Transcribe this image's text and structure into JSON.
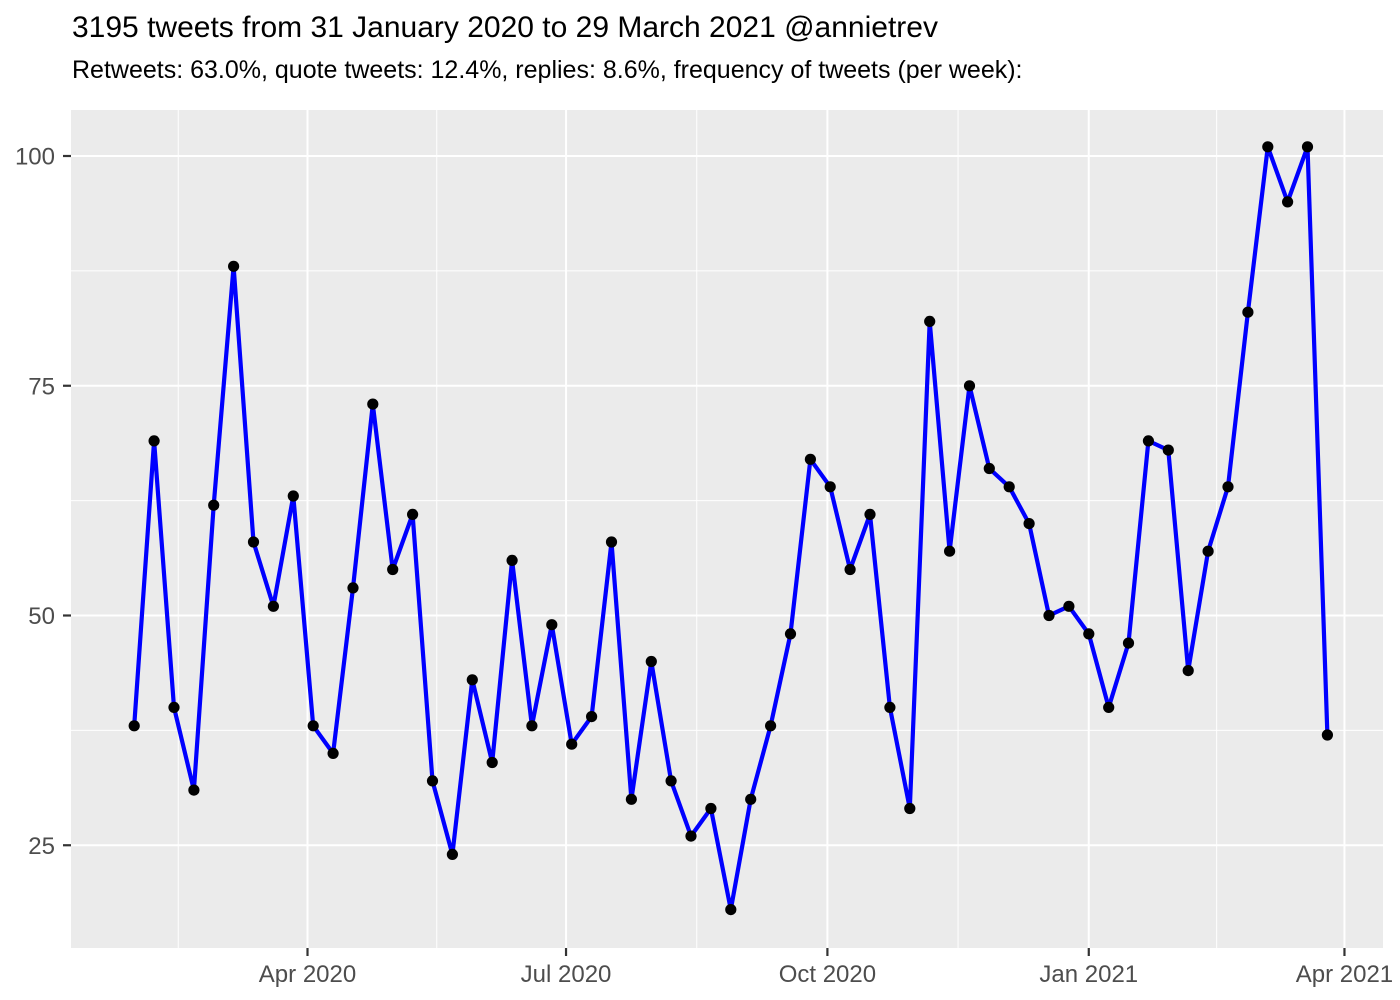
{
  "chart_data": {
    "type": "line",
    "title": "3195 tweets from 31 January 2020 to 29 March 2021 @annietrev",
    "subtitle": "Retweets: 63.0%, quote tweets: 12.4%, replies: 8.6%, frequency of tweets (per week):",
    "series_name": "tweets per week",
    "total_tweets": 3195,
    "weeks": [
      "2020-01-31",
      "2020-02-07",
      "2020-02-14",
      "2020-02-21",
      "2020-02-28",
      "2020-03-06",
      "2020-03-13",
      "2020-03-20",
      "2020-03-27",
      "2020-04-03",
      "2020-04-10",
      "2020-04-17",
      "2020-04-24",
      "2020-05-01",
      "2020-05-08",
      "2020-05-15",
      "2020-05-22",
      "2020-05-29",
      "2020-06-05",
      "2020-06-12",
      "2020-06-19",
      "2020-06-26",
      "2020-07-03",
      "2020-07-10",
      "2020-07-17",
      "2020-07-24",
      "2020-07-31",
      "2020-08-07",
      "2020-08-14",
      "2020-08-21",
      "2020-08-28",
      "2020-09-04",
      "2020-09-11",
      "2020-09-18",
      "2020-09-25",
      "2020-10-02",
      "2020-10-09",
      "2020-10-16",
      "2020-10-23",
      "2020-10-30",
      "2020-11-06",
      "2020-11-13",
      "2020-11-20",
      "2020-11-27",
      "2020-12-04",
      "2020-12-11",
      "2020-12-18",
      "2020-12-25",
      "2021-01-01",
      "2021-01-08",
      "2021-01-15",
      "2021-01-22",
      "2021-01-29",
      "2021-02-05",
      "2021-02-12",
      "2021-02-19",
      "2021-02-26",
      "2021-03-05",
      "2021-03-12",
      "2021-03-19",
      "2021-03-26"
    ],
    "values": [
      38,
      69,
      40,
      31,
      62,
      88,
      58,
      51,
      63,
      38,
      35,
      53,
      73,
      55,
      61,
      32,
      24,
      43,
      34,
      56,
      38,
      49,
      36,
      39,
      58,
      30,
      45,
      32,
      26,
      29,
      18,
      30,
      38,
      48,
      67,
      64,
      55,
      61,
      40,
      29,
      82,
      57,
      75,
      66,
      64,
      60,
      50,
      51,
      48,
      40,
      47,
      69,
      68,
      44,
      57,
      64,
      83,
      101,
      95,
      101,
      37
    ],
    "y_ticks": [
      25,
      50,
      75,
      100
    ],
    "y_minor_ticks": [
      37.5,
      62.5,
      87.5
    ],
    "x_ticks": [
      {
        "label": "Apr 2020",
        "day_offset": 61
      },
      {
        "label": "Jul 2020",
        "day_offset": 152
      },
      {
        "label": "Oct 2020",
        "day_offset": 244
      },
      {
        "label": "Jan 2021",
        "day_offset": 336
      },
      {
        "label": "Apr 2021",
        "day_offset": 426
      }
    ],
    "x_minor_day_offsets": [
      15.5,
      106.5,
      198,
      290,
      381
    ],
    "ylim": [
      13.9,
      105.2
    ],
    "grid": true,
    "legend": "none",
    "colors": {
      "line": "#0000FF",
      "point": "#000000",
      "panel_background": "#EBEBEB",
      "gridline": "#FFFFFF",
      "axis_text": "#4D4D4D",
      "tick_mark": "#333333",
      "title_text": "#000000"
    }
  }
}
